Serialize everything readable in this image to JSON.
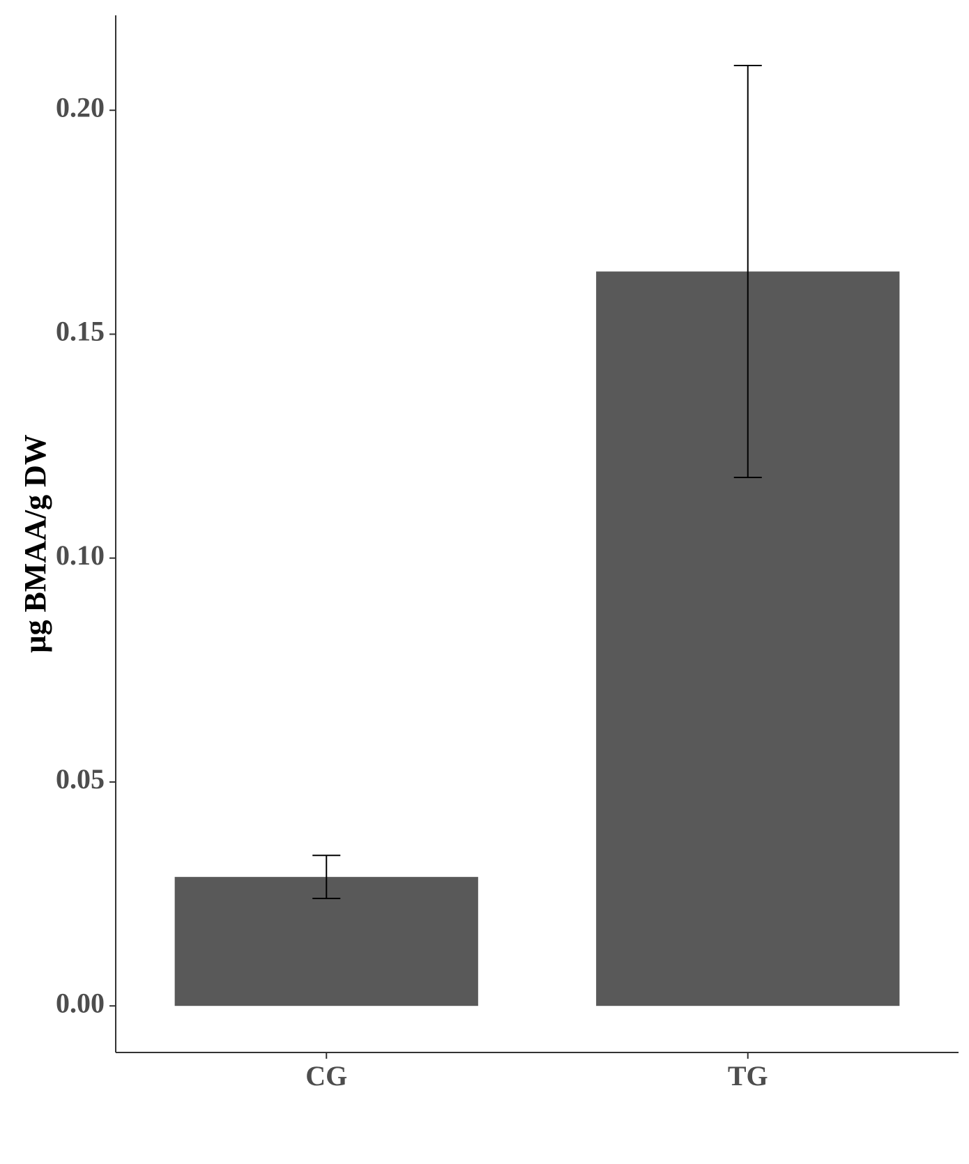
{
  "chart_data": {
    "type": "bar",
    "y_label": "µg BMAA/g DW",
    "categories": [
      "CG",
      "TG"
    ],
    "values": [
      0.0288,
      0.164
    ],
    "errors": [
      0.0048,
      0.046
    ],
    "color": "#595959",
    "ylim": [
      -0.0104,
      0.2212
    ],
    "yticks": [
      {
        "value": 0,
        "label": "0.00"
      },
      {
        "value": 0.05,
        "label": "0.05"
      },
      {
        "value": 0.1,
        "label": "0.10"
      },
      {
        "value": 0.15,
        "label": "0.15"
      },
      {
        "value": 0.2,
        "label": "0.20"
      }
    ],
    "grid": false
  }
}
